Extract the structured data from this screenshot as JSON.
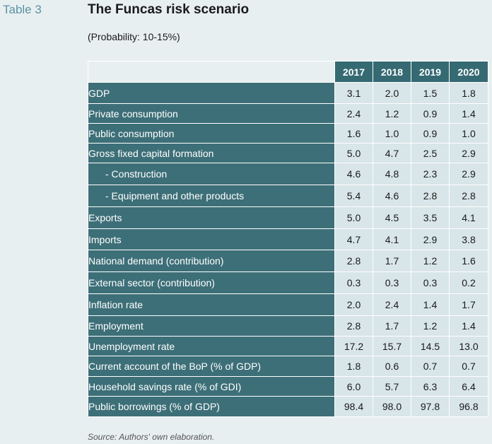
{
  "header": {
    "table_label": "Table 3",
    "title": "The Funcas risk scenario",
    "subtitle": "(Probability: 10-15%)"
  },
  "table": {
    "years": [
      "2017",
      "2018",
      "2019",
      "2020"
    ],
    "rows": [
      {
        "label": "GDP",
        "values": [
          "3.1",
          "2.0",
          "1.5",
          "1.8"
        ]
      },
      {
        "label": "Private consumption",
        "values": [
          "2.4",
          "1.2",
          "0.9",
          "1.4"
        ]
      },
      {
        "label": "Public consumption",
        "values": [
          "1.6",
          "1.0",
          "0.9",
          "1.0"
        ]
      },
      {
        "label": "Gross fixed capital formation",
        "values": [
          "5.0",
          "4.7",
          "2.5",
          "2.9"
        ]
      },
      {
        "label": "- Construction",
        "values": [
          "4.6",
          "4.8",
          "2.3",
          "2.9"
        ]
      },
      {
        "label": "- Equipment and other products",
        "values": [
          "5.4",
          "4.6",
          "2.8",
          "2.8"
        ]
      },
      {
        "label": "Exports",
        "values": [
          "5.0",
          "4.5",
          "3.5",
          "4.1"
        ]
      },
      {
        "label": "Imports",
        "values": [
          "4.7",
          "4.1",
          "2.9",
          "3.8"
        ]
      },
      {
        "label": "National demand (contribution)",
        "values": [
          "2.8",
          "1.7",
          "1.2",
          "1.6"
        ]
      },
      {
        "label": "External sector (contribution)",
        "values": [
          "0.3",
          "0.3",
          "0.3",
          "0.2"
        ]
      },
      {
        "label": "Inflation rate",
        "values": [
          "2.0",
          "2.4",
          "1.4",
          "1.7"
        ]
      },
      {
        "label": "Employment",
        "values": [
          "2.8",
          "1.7",
          "1.2",
          "1.4"
        ]
      },
      {
        "label": "Unemployment rate",
        "values": [
          "17.2",
          "15.7",
          "14.5",
          "13.0"
        ]
      },
      {
        "label": "Current account of the BoP (% of GDP)",
        "values": [
          "1.8",
          "0.6",
          "0.7",
          "0.7"
        ]
      },
      {
        "label": "Household savings rate (% of GDI)",
        "values": [
          "6.0",
          "5.7",
          "6.3",
          "6.4"
        ]
      },
      {
        "label": "Public borrowings (% of GDP)",
        "values": [
          "98.4",
          "98.0",
          "97.8",
          "96.8"
        ]
      }
    ]
  },
  "footer": {
    "source": "Source: Authors' own elaboration."
  },
  "colors": {
    "label_bg": "#3d6f78",
    "header_bg": "#356a73",
    "value_bg": "#d8e5e9",
    "page_bg": "#e8eff1"
  }
}
